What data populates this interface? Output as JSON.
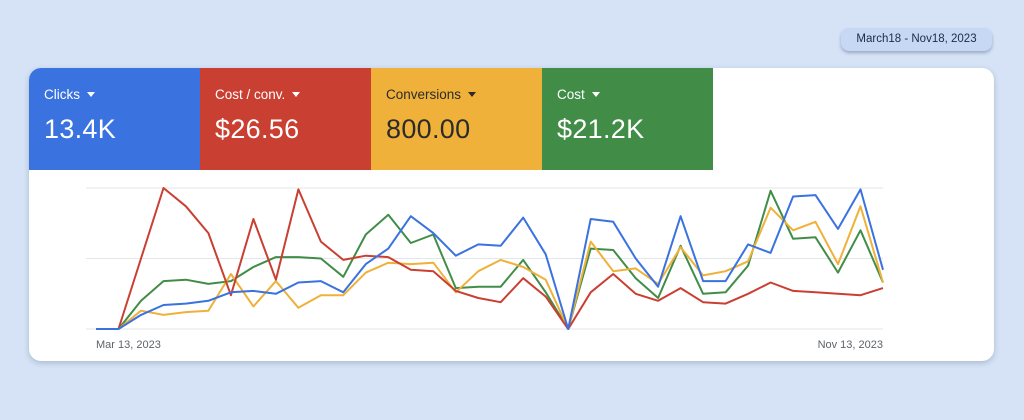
{
  "date_range": "March18 - Nov18, 2023",
  "metrics": [
    {
      "label": "Clicks",
      "value": "13.4K",
      "color": "#3a72e0"
    },
    {
      "label": "Cost / conv.",
      "value": "$26.56",
      "color": "#c93f31"
    },
    {
      "label": "Conversions",
      "value": "800.00",
      "color": "#efb13a"
    },
    {
      "label": "Cost",
      "value": "$21.2K",
      "color": "#418d48"
    }
  ],
  "chart_data": {
    "type": "line",
    "x_start_label": "Mar 13, 2023",
    "x_end_label": "Nov 13, 2023",
    "ylim": [
      0,
      100
    ],
    "grid": true,
    "series": [
      {
        "name": "Clicks",
        "color": "#3a72e0",
        "values": [
          0,
          0,
          10,
          17,
          18,
          20,
          26,
          27,
          25,
          33,
          34,
          26,
          46,
          57,
          80,
          68,
          52,
          60,
          59,
          79,
          53,
          0,
          78,
          76,
          50,
          30,
          80,
          34,
          34,
          60,
          54,
          94,
          95,
          71,
          99,
          42
        ]
      },
      {
        "name": "Cost / conv.",
        "color": "#c93f31",
        "values": [
          0,
          0,
          50,
          100,
          87,
          68,
          24,
          78,
          35,
          99,
          62,
          49,
          52,
          51,
          42,
          41,
          27,
          22,
          19,
          36,
          23,
          0,
          26,
          39,
          25,
          20,
          29,
          19,
          18,
          25,
          33,
          27,
          26,
          25,
          24,
          29
        ]
      },
      {
        "name": "Conversions",
        "color": "#efb13a",
        "values": [
          0,
          0,
          13,
          10,
          12,
          13,
          39,
          16,
          34,
          15,
          24,
          24,
          40,
          47,
          46,
          47,
          26,
          41,
          49,
          44,
          35,
          0,
          62,
          41,
          43,
          32,
          58,
          38,
          41,
          48,
          86,
          70,
          76,
          46,
          87,
          33
        ]
      },
      {
        "name": "Cost",
        "color": "#418d48",
        "values": [
          0,
          0,
          20,
          34,
          35,
          32,
          34,
          44,
          51,
          51,
          50,
          37,
          67,
          81,
          61,
          67,
          29,
          30,
          30,
          49,
          26,
          0,
          57,
          56,
          36,
          22,
          59,
          25,
          26,
          45,
          98,
          64,
          65,
          40,
          70,
          33
        ]
      }
    ]
  }
}
